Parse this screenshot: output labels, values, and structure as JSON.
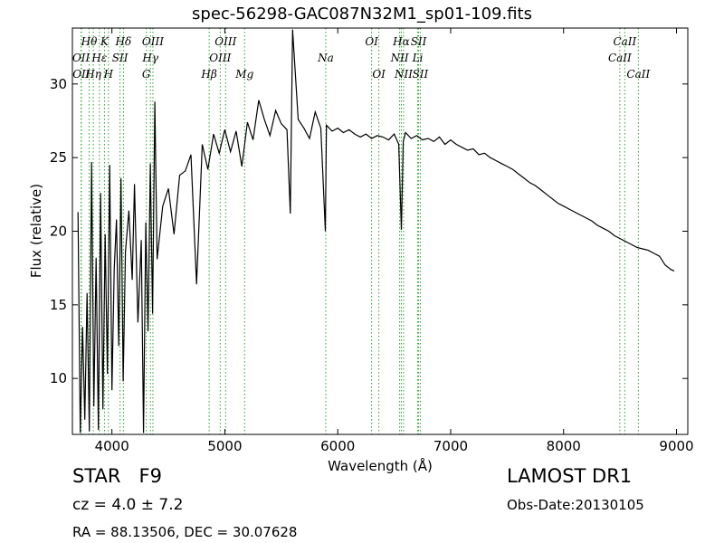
{
  "title": "spec-56298-GAC087N32M1_sp01-109.fits",
  "object_class": "STAR",
  "subclass": "F9",
  "redshift_text": "cz = 4.0 ± 7.2",
  "survey": "LAMOST DR1",
  "obs_date": "Obs-Date:20130105",
  "coords": "RA = 88.13506, DEC = 30.07628",
  "colors": {
    "spectrum": "#000000",
    "line_marker": "#2ca02c",
    "axes": "#000000"
  },
  "chart_data": {
    "type": "line",
    "title": "spec-56298-GAC087N32M1_sp01-109.fits",
    "xlabel": "Wavelength (Å)",
    "ylabel": "Flux (relative)",
    "xlim": [
      3650,
      9100
    ],
    "ylim": [
      6.2,
      33.8
    ],
    "xticks": [
      4000,
      5000,
      6000,
      7000,
      8000,
      9000
    ],
    "yticks": [
      10,
      15,
      20,
      25,
      30
    ],
    "grid": false,
    "series": [
      {
        "x": [
          3700,
          3720,
          3740,
          3760,
          3780,
          3800,
          3820,
          3840,
          3860,
          3880,
          3900,
          3920,
          3940,
          3960,
          3980,
          4000,
          4020,
          4040,
          4060,
          4080,
          4100,
          4120,
          4150,
          4180,
          4200,
          4230,
          4260,
          4280,
          4300,
          4320,
          4340,
          4360,
          4380,
          4400,
          4450,
          4500,
          4550,
          4600,
          4650,
          4700,
          4750,
          4800,
          4850,
          4900,
          4950,
          5000,
          5050,
          5100,
          5150,
          5200,
          5250,
          5300,
          5350,
          5400,
          5450,
          5500,
          5550,
          5580,
          5600,
          5650,
          5700,
          5750,
          5800,
          5850,
          5890,
          5900,
          5950,
          6000,
          6050,
          6100,
          6150,
          6200,
          6250,
          6300,
          6350,
          6400,
          6450,
          6500,
          6540,
          6563,
          6580,
          6600,
          6650,
          6700,
          6750,
          6800,
          6850,
          6900,
          6950,
          7000,
          7050,
          7100,
          7150,
          7200,
          7250,
          7300,
          7350,
          7400,
          7450,
          7500,
          7550,
          7600,
          7650,
          7700,
          7750,
          7800,
          7850,
          7900,
          7950,
          8000,
          8050,
          8100,
          8150,
          8200,
          8250,
          8300,
          8350,
          8400,
          8450,
          8500,
          8550,
          8600,
          8650,
          8700,
          8750,
          8800,
          8850,
          8900,
          8950,
          8980
        ],
        "y": [
          21.3,
          6.3,
          13.5,
          7.2,
          15.8,
          6.4,
          24.7,
          8.1,
          18.2,
          6.5,
          22.6,
          7.9,
          19.8,
          10.3,
          24.5,
          9.2,
          17.4,
          20.8,
          12.2,
          23.6,
          9.8,
          18.6,
          21.4,
          16.7,
          23.2,
          13.8,
          19.4,
          6.3,
          20.6,
          13.2,
          24.6,
          14.4,
          28.8,
          18.1,
          21.7,
          22.9,
          19.8,
          23.8,
          24.1,
          25.2,
          16.4,
          25.9,
          24.2,
          26.6,
          25.3,
          26.9,
          25.4,
          26.8,
          24.4,
          27.4,
          26.2,
          28.9,
          27.6,
          26.5,
          28.2,
          27.3,
          26.9,
          21.2,
          33.7,
          27.6,
          27.0,
          26.3,
          28.1,
          27.0,
          20.0,
          27.2,
          26.8,
          27.0,
          26.7,
          26.9,
          26.6,
          26.4,
          26.6,
          26.3,
          26.5,
          26.4,
          26.2,
          26.6,
          25.9,
          20.1,
          26.1,
          26.7,
          26.3,
          26.5,
          26.2,
          26.3,
          26.1,
          26.4,
          25.9,
          26.2,
          25.9,
          25.7,
          25.5,
          25.6,
          25.2,
          25.3,
          25.0,
          24.8,
          24.6,
          24.4,
          24.2,
          23.9,
          23.6,
          23.3,
          23.1,
          22.8,
          22.5,
          22.2,
          21.9,
          21.7,
          21.5,
          21.3,
          21.1,
          20.9,
          20.7,
          20.4,
          20.2,
          20.0,
          19.7,
          19.5,
          19.3,
          19.1,
          18.9,
          18.8,
          18.7,
          18.5,
          18.3,
          17.7,
          17.4,
          17.3
        ]
      }
    ],
    "line_markers": [
      {
        "label": "OII",
        "x": 3727,
        "row": 2
      },
      {
        "label": "OII",
        "x": 3729,
        "row": 3
      },
      {
        "label": "Hθ",
        "x": 3798,
        "row": 1
      },
      {
        "label": "Hη",
        "x": 3835,
        "row": 3
      },
      {
        "label": "Hε",
        "x": 3889,
        "row": 2
      },
      {
        "label": "K",
        "x": 3934,
        "row": 1
      },
      {
        "label": "H",
        "x": 3969,
        "row": 3
      },
      {
        "label": "SII",
        "x": 4072,
        "row": 2
      },
      {
        "label": "Hδ",
        "x": 4102,
        "row": 1
      },
      {
        "label": "G",
        "x": 4305,
        "row": 3
      },
      {
        "label": "Hγ",
        "x": 4341,
        "row": 2
      },
      {
        "label": "OIII",
        "x": 4363,
        "row": 1
      },
      {
        "label": "Hβ",
        "x": 4861,
        "row": 3
      },
      {
        "label": "OIII",
        "x": 4959,
        "row": 2
      },
      {
        "label": "OIII",
        "x": 5007,
        "row": 1
      },
      {
        "label": "Mg",
        "x": 5175,
        "row": 3
      },
      {
        "label": "Na",
        "x": 5894,
        "row": 2
      },
      {
        "label": "OI",
        "x": 6300,
        "row": 1
      },
      {
        "label": "OI",
        "x": 6364,
        "row": 3
      },
      {
        "label": "NII",
        "x": 6548,
        "row": 2
      },
      {
        "label": "Hα",
        "x": 6563,
        "row": 1
      },
      {
        "label": "NII",
        "x": 6583,
        "row": 3
      },
      {
        "label": "Li",
        "x": 6708,
        "row": 2
      },
      {
        "label": "SII",
        "x": 6716,
        "row": 1
      },
      {
        "label": "SII",
        "x": 6731,
        "row": 3
      },
      {
        "label": "CaII",
        "x": 8498,
        "row": 2
      },
      {
        "label": "CaII",
        "x": 8542,
        "row": 1
      },
      {
        "label": "CaII",
        "x": 8662,
        "row": 3
      }
    ]
  }
}
